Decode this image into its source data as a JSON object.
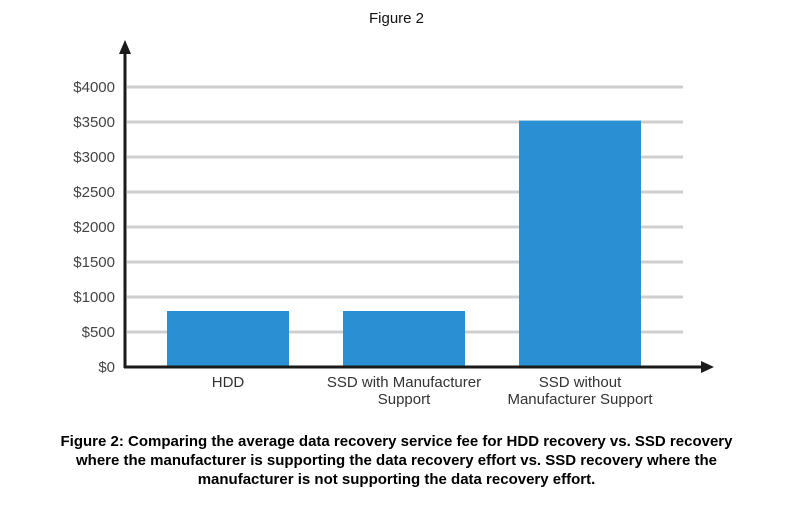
{
  "figure_title": "Figure 2",
  "caption_lines": [
    "Figure 2: Comparing the average data recovery service fee for HDD recovery vs. SSD recovery",
    "where the manufacturer is supporting the data recovery effort vs. SSD recovery where the",
    "manufacturer is not supporting the data recovery effort."
  ],
  "chart_data": {
    "type": "bar",
    "title": "Figure 2",
    "xlabel": "",
    "ylabel": "",
    "categories": [
      [
        "HDD"
      ],
      [
        "SSD with Manufacturer",
        "Support"
      ],
      [
        "SSD without",
        "Manufacturer Support"
      ]
    ],
    "values": [
      800,
      800,
      3520
    ],
    "ylim": [
      0,
      4000
    ],
    "yticks": [
      0,
      500,
      1000,
      1500,
      2000,
      2500,
      3000,
      3500,
      4000
    ],
    "ytick_labels": [
      "$0",
      "$500",
      "$1000",
      "$1500",
      "$2000",
      "$2500",
      "$3000",
      "$3500",
      "$4000"
    ],
    "grid": true,
    "bar_color": "#2b8fd4"
  }
}
